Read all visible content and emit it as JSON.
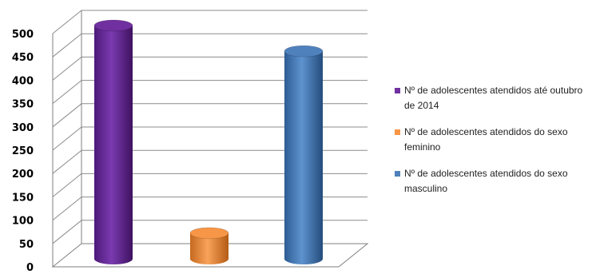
{
  "chart_data": {
    "type": "bar",
    "title": "",
    "xlabel": "",
    "ylabel": "",
    "ylim": [
      0,
      500
    ],
    "yticks": [
      0,
      50,
      100,
      150,
      200,
      250,
      300,
      350,
      400,
      450,
      500
    ],
    "grid": true,
    "legend_position": "right",
    "series": [
      {
        "name": "Nº de adolescentes atendidos até outubro de 2014",
        "value": 500,
        "color": "#7030a0"
      },
      {
        "name": "Nº de adolescentes atendidos do sexo feminino",
        "value": 55,
        "color": "#f79646"
      },
      {
        "name": "Nº de adolescentes atendidos do sexo masculino",
        "value": 445,
        "color": "#4f81bd"
      }
    ]
  }
}
